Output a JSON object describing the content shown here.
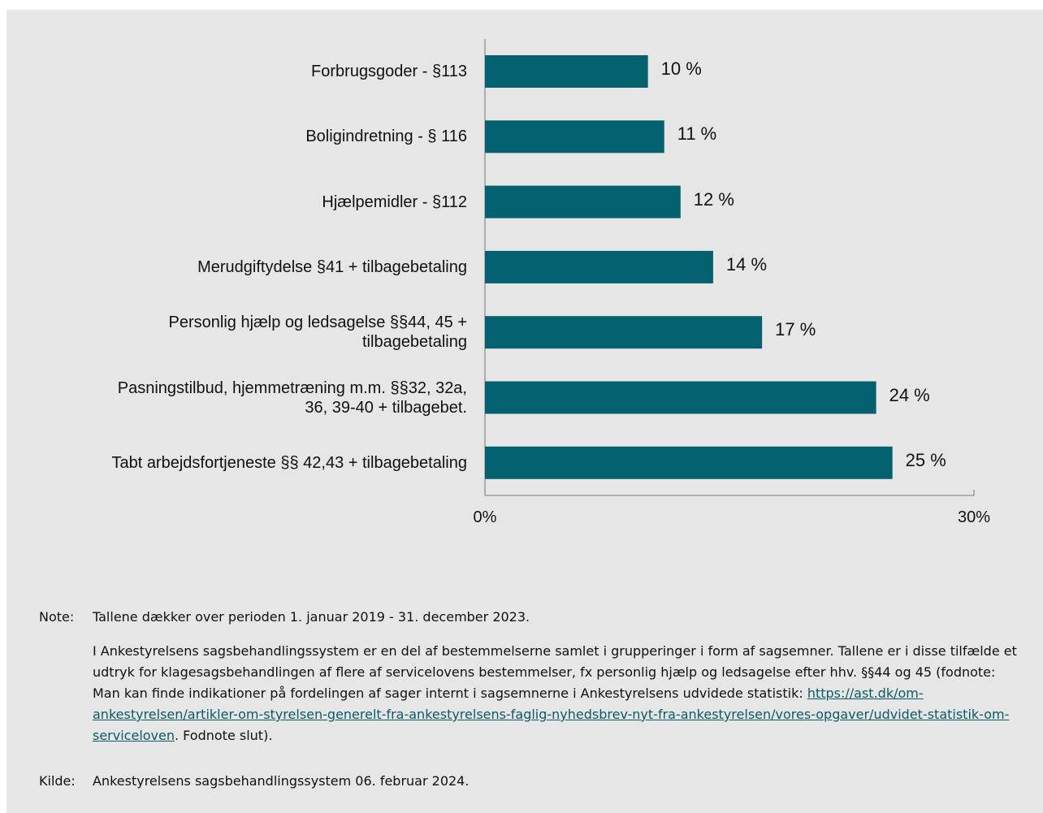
{
  "chart_data": {
    "type": "bar",
    "orientation": "horizontal",
    "categories": [
      "Forbrugsgoder - §113",
      "Boligindretning - § 116",
      "Hjælpemidler - §112",
      "Merudgiftydelse §41 + tilbagebetaling",
      "Personlig hjælp og ledsagelse §§44, 45 +\ntilbagebetaling",
      "Pasningstilbud, hjemmetræning m.m. §§32, 32a,\n36, 39-40 + tilbagebet.",
      "Tabt arbejdsfortjeneste §§ 42,43 + tilbagebetaling"
    ],
    "values": [
      10,
      11,
      12,
      14,
      17,
      24,
      25
    ],
    "value_labels": [
      "10 %",
      "11 %",
      "12 %",
      "14 %",
      "17 %",
      "24 %",
      "25 %"
    ],
    "color": "#02606f",
    "xlim": [
      0,
      30
    ],
    "xticks": [
      {
        "value": 0,
        "label": "0%"
      },
      {
        "value": 30,
        "label": "30%"
      }
    ]
  },
  "note": {
    "label": "Note:",
    "first": "Tallene dækker over perioden 1. januar 2019 - 31. december 2023.",
    "second_before": "I Ankestyrelsens sagsbehandlingssystem er en del af bestemmelserne samlet i grupperinger i form af sagsemner. Tallene er i disse tilfælde et udtryk for klagesagsbehandlingen af flere af servicelovens bestemmelser, fx personlig hjælp og ledsagelse efter hhv. §§44 og 45 (fodnote: Man kan finde indikationer på fordelingen af sager internt i sagsemnerne i Ankestyrelsens udvidede statistik: ",
    "link": "https://ast.dk/om-ankestyrelsen/artikler-om-styrelsen-generelt-fra-ankestyrelsens-faglig-nyhedsbrev-nyt-fra-ankestyrelsen/vores-opgaver/udvidet-statistik-om-serviceloven",
    "second_after": ". Fodnote slut)."
  },
  "source": {
    "label": "Kilde:",
    "text": "Ankestyrelsens sagsbehandlingssystem 06. februar 2024."
  }
}
